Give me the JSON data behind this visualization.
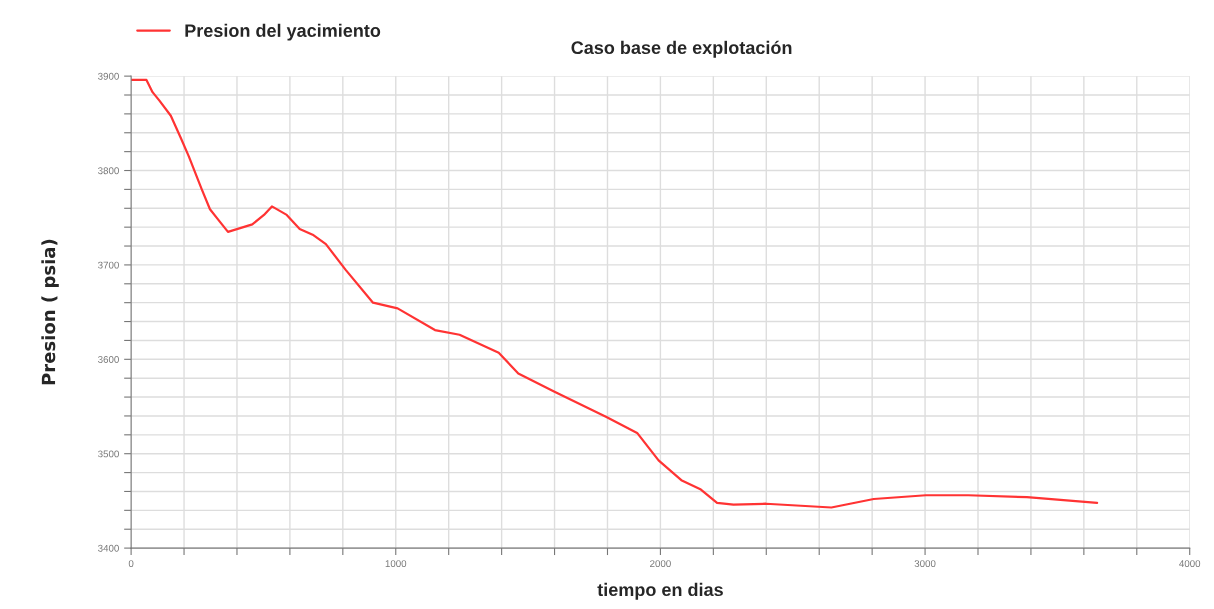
{
  "chart_data": {
    "type": "line",
    "title": "Caso base de explotación",
    "xlabel": "tiempo en dias",
    "ylabel": "Presion ( psia)",
    "legend": "top left",
    "grid": true,
    "line_style": "solid",
    "xlim": [
      0,
      4000
    ],
    "xticks": [
      0,
      {
        "value": 200,
        "label": null
      },
      {
        "value": 400,
        "label": null
      },
      {
        "value": 600,
        "label": null
      },
      {
        "value": 800,
        "label": null
      },
      1000,
      {
        "value": 1200,
        "label": null
      },
      {
        "value": 1400,
        "label": null
      },
      {
        "value": 1600,
        "label": null
      },
      {
        "value": 1800,
        "label": null
      },
      2000,
      {
        "value": 2200,
        "label": null
      },
      {
        "value": 2400,
        "label": null
      },
      {
        "value": 2600,
        "label": null
      },
      {
        "value": 2800,
        "label": null
      },
      3000,
      {
        "value": 3200,
        "label": null
      },
      {
        "value": 3400,
        "label": null
      },
      {
        "value": 3600,
        "label": null
      },
      {
        "value": 3800,
        "label": null
      },
      4000
    ],
    "ylim": [
      3400,
      3900
    ],
    "yticks": [
      3400,
      {
        "value": 3420,
        "label": null
      },
      {
        "value": 3440,
        "label": null
      },
      {
        "value": 3460,
        "label": null
      },
      {
        "value": 3480,
        "label": null
      },
      3500,
      {
        "value": 3520,
        "label": null
      },
      {
        "value": 3540,
        "label": null
      },
      {
        "value": 3560,
        "label": null
      },
      {
        "value": 3580,
        "label": null
      },
      3600,
      {
        "value": 3620,
        "label": null
      },
      {
        "value": 3640,
        "label": null
      },
      {
        "value": 3660,
        "label": null
      },
      {
        "value": 3680,
        "label": null
      },
      3700,
      {
        "value": 3720,
        "label": null
      },
      {
        "value": 3740,
        "label": null
      },
      {
        "value": 3760,
        "label": null
      },
      {
        "value": 3780,
        "label": null
      },
      3800,
      {
        "value": 3820,
        "label": null
      },
      {
        "value": 3840,
        "label": null
      },
      {
        "value": 3860,
        "label": null
      },
      {
        "value": 3880,
        "label": null
      },
      3900
    ],
    "series": [
      {
        "name": "Presion del yacimiento",
        "color": "#ff3333",
        "x": [
          0,
          58,
          81,
          107,
          150,
          187,
          218,
          267,
          298,
          329,
          366,
          458,
          502,
          532,
          588,
          637,
          686,
          736,
          810,
          914,
          1007,
          1148,
          1241,
          1389,
          1463,
          1598,
          1796,
          1912,
          1993,
          2079,
          2153,
          2214,
          2276,
          2399,
          2646,
          2806,
          3003,
          3163,
          3385,
          3650
        ],
        "values": [
          3896,
          3896,
          3883,
          3874,
          3858,
          3835,
          3815,
          3780,
          3759,
          3748,
          3735,
          3743,
          3753,
          3762,
          3753,
          3738,
          3732,
          3722,
          3695,
          3660,
          3654,
          3631,
          3626,
          3607,
          3585,
          3566,
          3539,
          3522,
          3493,
          3472,
          3462,
          3448,
          3446,
          3447,
          3443,
          3452,
          3456,
          3456,
          3454,
          3448
        ]
      }
    ]
  }
}
